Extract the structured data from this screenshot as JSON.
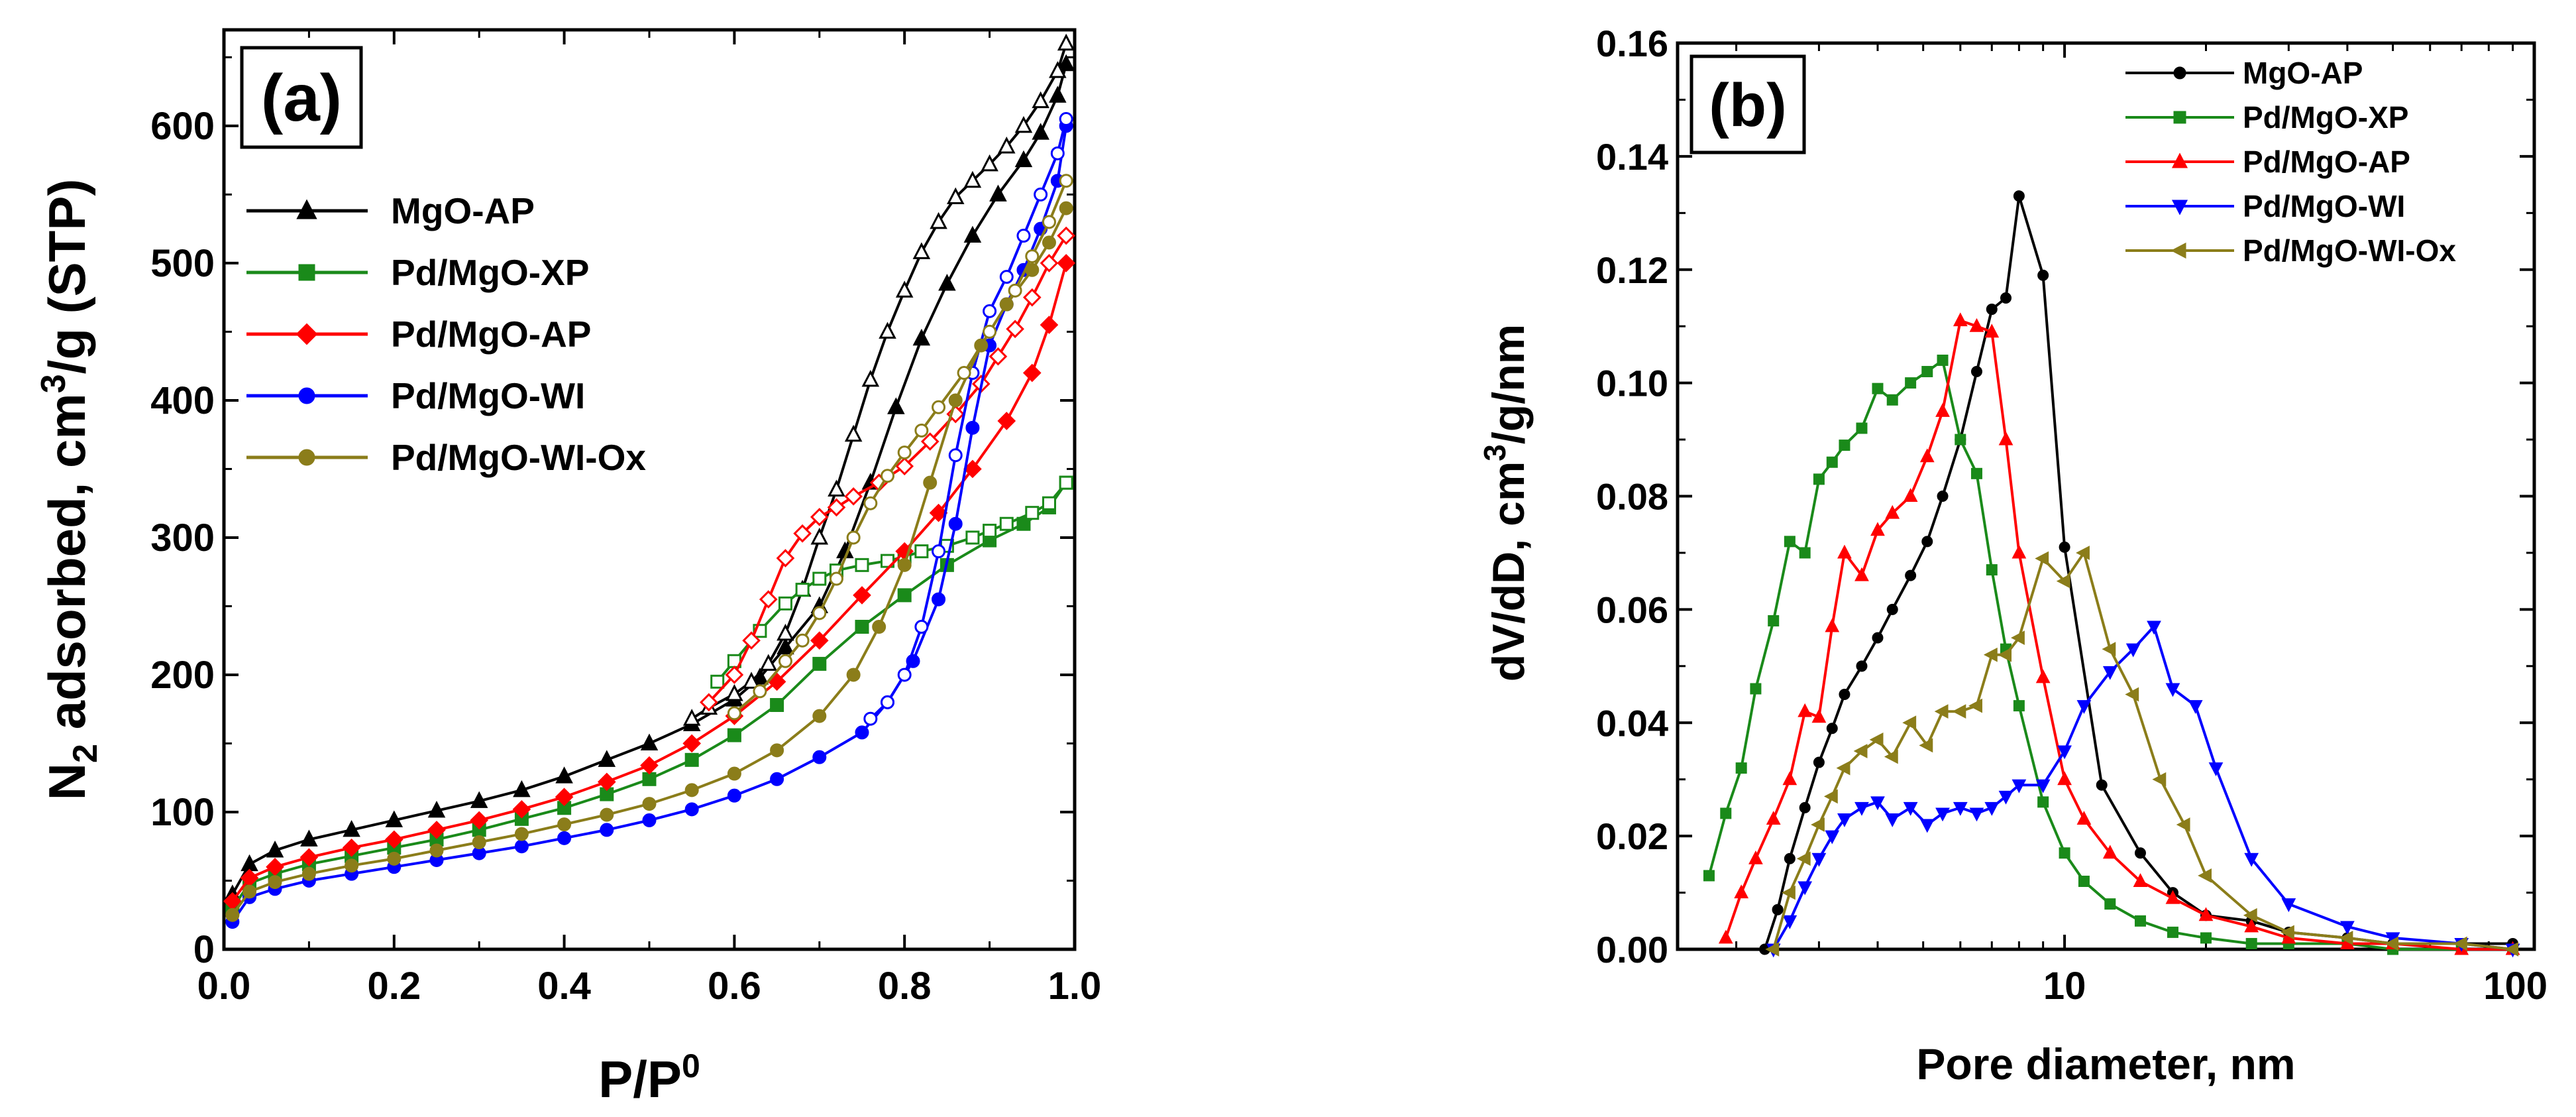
{
  "chart_data": [
    {
      "panel": "(a)",
      "type": "line",
      "xlabel": "P/P",
      "xlabel_sup": "0",
      "ylabel_parts": [
        "N",
        "2",
        " adsorbed, cm",
        "3",
        "/g (STP)"
      ],
      "xlim": [
        0.0,
        1.0
      ],
      "ylim": [
        0,
        670
      ],
      "xticks": [
        0.0,
        0.2,
        0.4,
        0.6,
        0.8,
        1.0
      ],
      "xtick_labels": [
        "0.0",
        "0.2",
        "0.4",
        "0.6",
        "0.8",
        "1.0"
      ],
      "yticks": [
        0,
        100,
        200,
        300,
        400,
        500,
        600
      ],
      "ytick_labels": [
        "0",
        "100",
        "200",
        "300",
        "400",
        "500",
        "600"
      ],
      "legend_position": "upper-left",
      "series": [
        {
          "name": "MgO-AP",
          "color": "#000000",
          "marker": "triangle",
          "adsorption": {
            "x": [
              0.01,
              0.03,
              0.06,
              0.1,
              0.15,
              0.2,
              0.25,
              0.3,
              0.35,
              0.4,
              0.45,
              0.5,
              0.55,
              0.6,
              0.63,
              0.66,
              0.7,
              0.73,
              0.76,
              0.79,
              0.82,
              0.85,
              0.88,
              0.91,
              0.94,
              0.96,
              0.98,
              0.99
            ],
            "y": [
              40,
              62,
              72,
              80,
              87,
              94,
              101,
              108,
              116,
              126,
              138,
              150,
              164,
              182,
              198,
              220,
              250,
              290,
              340,
              395,
              445,
              485,
              520,
              550,
              575,
              595,
              622,
              645
            ]
          },
          "desorption": {
            "x": [
              0.99,
              0.98,
              0.96,
              0.94,
              0.92,
              0.9,
              0.88,
              0.86,
              0.84,
              0.82,
              0.8,
              0.78,
              0.76,
              0.74,
              0.72,
              0.7,
              0.68,
              0.66,
              0.64,
              0.62,
              0.6,
              0.57,
              0.55
            ],
            "y": [
              660,
              640,
              618,
              600,
              585,
              572,
              560,
              548,
              530,
              508,
              480,
              450,
              415,
              375,
              335,
              300,
              262,
              230,
              208,
              195,
              186,
              176,
              168
            ]
          }
        },
        {
          "name": "Pd/MgO-XP",
          "color": "#1a8a1a",
          "marker": "square",
          "adsorption": {
            "x": [
              0.01,
              0.03,
              0.06,
              0.1,
              0.15,
              0.2,
              0.25,
              0.3,
              0.35,
              0.4,
              0.45,
              0.5,
              0.55,
              0.6,
              0.65,
              0.7,
              0.75,
              0.8,
              0.85,
              0.9,
              0.94,
              0.97,
              0.99
            ],
            "y": [
              30,
              48,
              55,
              62,
              68,
              74,
              80,
              87,
              95,
              103,
              113,
              124,
              138,
              156,
              178,
              208,
              235,
              258,
              280,
              298,
              310,
              322,
              340
            ]
          },
          "desorption": {
            "x": [
              0.99,
              0.97,
              0.95,
              0.92,
              0.9,
              0.88,
              0.85,
              0.82,
              0.8,
              0.78,
              0.75,
              0.72,
              0.7,
              0.68,
              0.66,
              0.63,
              0.6,
              0.58
            ],
            "y": [
              340,
              325,
              318,
              310,
              305,
              300,
              294,
              290,
              286,
              283,
              280,
              276,
              270,
              262,
              252,
              232,
              210,
              195
            ]
          }
        },
        {
          "name": "Pd/MgO-AP",
          "color": "#ff0000",
          "marker": "diamond",
          "adsorption": {
            "x": [
              0.01,
              0.03,
              0.06,
              0.1,
              0.15,
              0.2,
              0.25,
              0.3,
              0.35,
              0.4,
              0.45,
              0.5,
              0.55,
              0.6,
              0.65,
              0.7,
              0.75,
              0.8,
              0.84,
              0.88,
              0.92,
              0.95,
              0.97,
              0.99
            ],
            "y": [
              35,
              52,
              60,
              67,
              74,
              80,
              87,
              94,
              102,
              111,
              122,
              134,
              150,
              170,
              195,
              225,
              258,
              290,
              318,
              350,
              385,
              420,
              455,
              500
            ]
          },
          "desorption": {
            "x": [
              0.99,
              0.97,
              0.95,
              0.93,
              0.91,
              0.89,
              0.86,
              0.83,
              0.8,
              0.77,
              0.74,
              0.72,
              0.7,
              0.68,
              0.66,
              0.64,
              0.62,
              0.6,
              0.57
            ],
            "y": [
              520,
              500,
              475,
              452,
              432,
              412,
              390,
              370,
              352,
              340,
              330,
              322,
              315,
              303,
              285,
              255,
              225,
              200,
              180
            ]
          }
        },
        {
          "name": "Pd/MgO-WI",
          "color": "#0000ff",
          "marker": "circle",
          "adsorption": {
            "x": [
              0.01,
              0.03,
              0.06,
              0.1,
              0.15,
              0.2,
              0.25,
              0.3,
              0.35,
              0.4,
              0.45,
              0.5,
              0.55,
              0.6,
              0.65,
              0.7,
              0.75,
              0.78,
              0.81,
              0.84,
              0.86,
              0.88,
              0.9,
              0.92,
              0.94,
              0.96,
              0.98,
              0.99
            ],
            "y": [
              20,
              38,
              44,
              50,
              55,
              60,
              65,
              70,
              75,
              81,
              87,
              94,
              102,
              112,
              124,
              140,
              158,
              180,
              210,
              255,
              310,
              380,
              440,
              470,
              495,
              525,
              560,
              600
            ]
          },
          "desorption": {
            "x": [
              0.99,
              0.98,
              0.96,
              0.94,
              0.92,
              0.9,
              0.88,
              0.86,
              0.84,
              0.82,
              0.8,
              0.78,
              0.76
            ],
            "y": [
              605,
              580,
              550,
              520,
              490,
              465,
              420,
              360,
              290,
              235,
              200,
              180,
              168
            ]
          }
        },
        {
          "name": "Pd/MgO-WI-Ox",
          "color": "#8b7d1a",
          "marker": "circle",
          "adsorption": {
            "x": [
              0.01,
              0.03,
              0.06,
              0.1,
              0.15,
              0.2,
              0.25,
              0.3,
              0.35,
              0.4,
              0.45,
              0.5,
              0.55,
              0.6,
              0.65,
              0.7,
              0.74,
              0.77,
              0.8,
              0.83,
              0.86,
              0.89,
              0.92,
              0.95,
              0.97,
              0.99
            ],
            "y": [
              25,
              42,
              49,
              55,
              61,
              66,
              72,
              78,
              84,
              91,
              98,
              106,
              116,
              128,
              145,
              170,
              200,
              235,
              280,
              340,
              400,
              440,
              470,
              495,
              515,
              540
            ]
          },
          "desorption": {
            "x": [
              0.99,
              0.97,
              0.95,
              0.93,
              0.9,
              0.87,
              0.84,
              0.82,
              0.8,
              0.78,
              0.76,
              0.74,
              0.72,
              0.7,
              0.68,
              0.66,
              0.63,
              0.6
            ],
            "y": [
              560,
              530,
              505,
              480,
              450,
              420,
              395,
              378,
              362,
              345,
              325,
              300,
              270,
              245,
              225,
              210,
              188,
              172
            ]
          }
        }
      ]
    },
    {
      "panel": "(b)",
      "type": "line",
      "xlabel": "Pore diameter, nm",
      "ylabel_parts": [
        "dV/dD, cm",
        "3",
        "/g/nm"
      ],
      "x_scale": "log",
      "xlim": [
        1.5,
        100
      ],
      "ylim": [
        0.0,
        0.16
      ],
      "xticks": [
        10,
        100
      ],
      "xtick_labels": [
        "10",
        "100"
      ],
      "yticks": [
        0.0,
        0.02,
        0.04,
        0.06,
        0.08,
        0.1,
        0.12,
        0.14,
        0.16
      ],
      "ytick_labels": [
        "0.00",
        "0.02",
        "0.04",
        "0.06",
        "0.08",
        "0.10",
        "0.12",
        "0.14",
        "0.16"
      ],
      "legend_position": "top-right",
      "series": [
        {
          "name": "MgO-AP",
          "color": "#000000",
          "marker": "circle",
          "x": [
            2.3,
            2.45,
            2.6,
            2.8,
            3.0,
            3.2,
            3.4,
            3.7,
            4.0,
            4.3,
            4.7,
            5.1,
            5.5,
            6.0,
            6.5,
            7.0,
            7.5,
            8.0,
            9.0,
            10.0,
            12.0,
            14.5,
            17.0,
            20.0,
            25.0,
            30.0,
            40.0,
            50.0,
            70.0,
            90.0
          ],
          "y": [
            0.0,
            0.007,
            0.016,
            0.025,
            0.033,
            0.039,
            0.045,
            0.05,
            0.055,
            0.06,
            0.066,
            0.072,
            0.08,
            0.09,
            0.102,
            0.113,
            0.115,
            0.133,
            0.119,
            0.071,
            0.029,
            0.017,
            0.01,
            0.006,
            0.005,
            0.003,
            0.002,
            0.001,
            0.001,
            0.001
          ]
        },
        {
          "name": "Pd/MgO-XP",
          "color": "#1a8a1a",
          "marker": "square",
          "x": [
            1.75,
            1.9,
            2.05,
            2.2,
            2.4,
            2.6,
            2.8,
            3.0,
            3.2,
            3.4,
            3.7,
            4.0,
            4.3,
            4.7,
            5.1,
            5.5,
            6.0,
            6.5,
            7.0,
            7.5,
            8.0,
            9.0,
            10.0,
            11.0,
            12.5,
            14.5,
            17.0,
            20.0,
            25.0,
            30.0,
            40.0,
            50.0,
            70.0,
            90.0
          ],
          "y": [
            0.013,
            0.024,
            0.032,
            0.046,
            0.058,
            0.072,
            0.07,
            0.083,
            0.086,
            0.089,
            0.092,
            0.099,
            0.097,
            0.1,
            0.102,
            0.104,
            0.09,
            0.084,
            0.067,
            0.053,
            0.043,
            0.026,
            0.017,
            0.012,
            0.008,
            0.005,
            0.003,
            0.002,
            0.001,
            0.001,
            0.001,
            0.0,
            0.0,
            0.0
          ]
        },
        {
          "name": "Pd/MgO-AP",
          "color": "#ff0000",
          "marker": "triangle",
          "x": [
            1.9,
            2.05,
            2.2,
            2.4,
            2.6,
            2.8,
            3.0,
            3.2,
            3.4,
            3.7,
            4.0,
            4.3,
            4.7,
            5.1,
            5.5,
            6.0,
            6.5,
            7.0,
            7.5,
            8.0,
            9.0,
            10.0,
            11.0,
            12.5,
            14.5,
            17.0,
            20.0,
            25.0,
            30.0,
            40.0,
            50.0,
            70.0,
            90.0
          ],
          "y": [
            0.002,
            0.01,
            0.016,
            0.023,
            0.03,
            0.042,
            0.041,
            0.057,
            0.07,
            0.066,
            0.074,
            0.077,
            0.08,
            0.087,
            0.095,
            0.111,
            0.11,
            0.109,
            0.09,
            0.07,
            0.048,
            0.03,
            0.023,
            0.017,
            0.012,
            0.009,
            0.006,
            0.004,
            0.002,
            0.001,
            0.001,
            0.0,
            0.0
          ]
        },
        {
          "name": "Pd/MgO-WI",
          "color": "#0000ff",
          "marker": "triangle-down",
          "x": [
            2.4,
            2.6,
            2.8,
            3.0,
            3.2,
            3.4,
            3.7,
            4.0,
            4.3,
            4.7,
            5.1,
            5.5,
            6.0,
            6.5,
            7.0,
            7.5,
            8.0,
            9.0,
            10.0,
            11.0,
            12.5,
            14.0,
            15.5,
            17.0,
            19.0,
            21.0,
            25.0,
            30.0,
            40.0,
            50.0,
            70.0,
            90.0
          ],
          "y": [
            0.0,
            0.005,
            0.011,
            0.016,
            0.02,
            0.023,
            0.025,
            0.026,
            0.023,
            0.025,
            0.022,
            0.024,
            0.025,
            0.024,
            0.025,
            0.027,
            0.029,
            0.029,
            0.035,
            0.043,
            0.049,
            0.053,
            0.057,
            0.046,
            0.043,
            0.032,
            0.016,
            0.008,
            0.004,
            0.002,
            0.001,
            0.0
          ]
        },
        {
          "name": "Pd/MgO-WI-Ox",
          "color": "#8b7d1a",
          "marker": "triangle-left",
          "x": [
            2.4,
            2.6,
            2.8,
            3.0,
            3.2,
            3.4,
            3.7,
            4.0,
            4.3,
            4.7,
            5.1,
            5.5,
            6.0,
            6.5,
            7.0,
            7.5,
            8.0,
            9.0,
            10.0,
            11.0,
            12.5,
            14.0,
            16.0,
            18.0,
            20.0,
            25.0,
            30.0,
            40.0,
            50.0,
            70.0,
            90.0
          ],
          "y": [
            0.0,
            0.01,
            0.016,
            0.022,
            0.027,
            0.032,
            0.035,
            0.037,
            0.034,
            0.04,
            0.036,
            0.042,
            0.042,
            0.043,
            0.052,
            0.052,
            0.055,
            0.069,
            0.065,
            0.07,
            0.053,
            0.045,
            0.03,
            0.022,
            0.013,
            0.006,
            0.003,
            0.002,
            0.001,
            0.001,
            0.0
          ]
        }
      ]
    }
  ]
}
